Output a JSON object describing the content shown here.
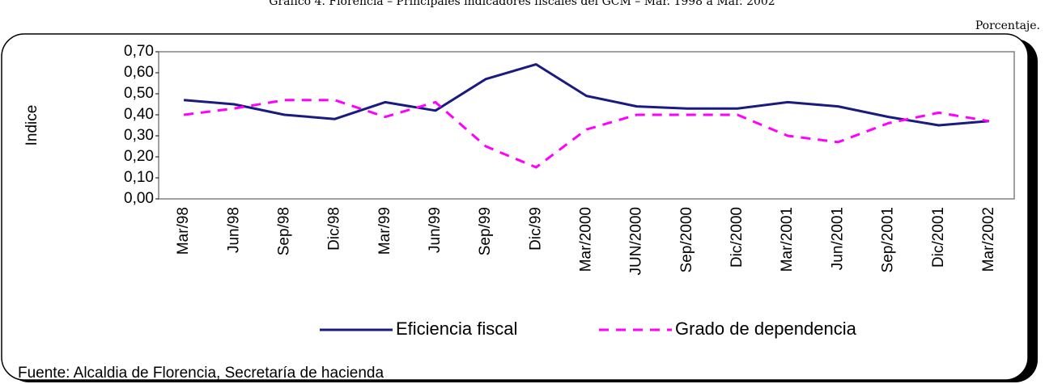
{
  "chart_data": {
    "type": "line",
    "title": "Gráfico 4. Florencia – Principales indicadores fiscales del GCM – Mar. 1998 a Mar. 2002",
    "unit_note": "Porcentaje.",
    "y_label": "Indice",
    "source": "Fuente: Alcaldia de Florencia, Secretaría de hacienda",
    "categories": [
      "Mar/98",
      "Jun/98",
      "Sep/98",
      "Dic/98",
      "Mar/99",
      "Jun/99",
      "Sep/99",
      "Dic/99",
      "Mar/2000",
      "JUN/2000",
      "Sep/2000",
      "Dic/2000",
      "Mar/2001",
      "Jun/2001",
      "Sep/2001",
      "Dic/2001",
      "Mar/2002"
    ],
    "series": [
      {
        "name": "Eficiencia fiscal",
        "color": "#1a1a80",
        "dash": false,
        "values": [
          0.47,
          0.45,
          0.4,
          0.38,
          0.46,
          0.42,
          0.57,
          0.64,
          0.49,
          0.44,
          0.43,
          0.43,
          0.46,
          0.44,
          0.39,
          0.35,
          0.37
        ]
      },
      {
        "name": "Grado de dependencia",
        "color": "#ff00ff",
        "dash": true,
        "values": [
          0.4,
          0.43,
          0.47,
          0.47,
          0.39,
          0.46,
          0.25,
          0.15,
          0.33,
          0.4,
          0.4,
          0.4,
          0.3,
          0.27,
          0.36,
          0.41,
          0.37
        ]
      }
    ],
    "ylim": [
      0,
      0.7
    ],
    "yticks": [
      {
        "value": 0,
        "label": "0,00"
      },
      {
        "value": 0.1,
        "label": "0,10"
      },
      {
        "value": 0.2,
        "label": "0,20"
      },
      {
        "value": 0.3,
        "label": "0,30"
      },
      {
        "value": 0.4,
        "label": "0,40"
      },
      {
        "value": 0.5,
        "label": "0,50"
      },
      {
        "value": 0.6,
        "label": "0,60"
      },
      {
        "value": 0.7,
        "label": "0,70"
      }
    ],
    "grid": false
  }
}
